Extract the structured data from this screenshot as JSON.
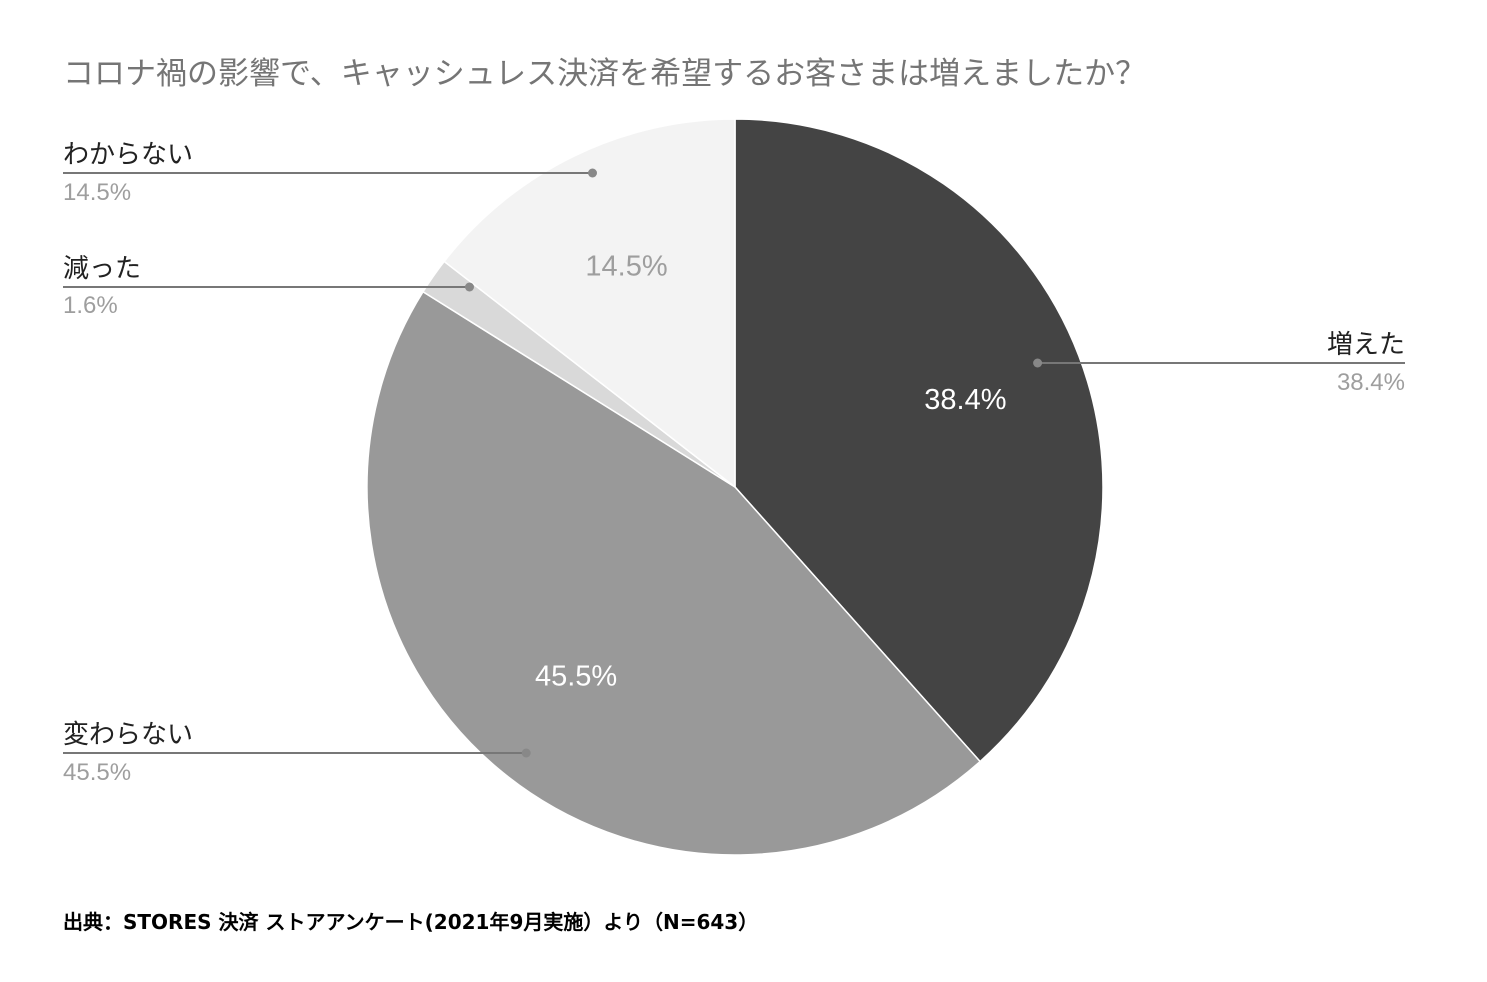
{
  "chart_data": {
    "type": "pie",
    "title": "コロナ禍の影響で、キャッシュレス決済を希望するお客さまは増えましたか？",
    "start_angle_deg": 0,
    "direction": "clockwise",
    "slices": [
      {
        "label": "増えた",
        "value": 38.4,
        "display": "38.4%",
        "color": "#444444",
        "label_color": "#ffffff",
        "legend_side": "right"
      },
      {
        "label": "変わらない",
        "value": 45.5,
        "display": "45.5%",
        "color": "#999999",
        "label_color": "#ffffff",
        "legend_side": "left"
      },
      {
        "label": "減った",
        "value": 1.6,
        "display": "1.6%",
        "color": "#d9d9d9",
        "label_color": "#9e9e9e",
        "legend_side": "left"
      },
      {
        "label": "わからない",
        "value": 14.5,
        "display": "14.5%",
        "color": "#f3f3f3",
        "label_color": "#9e9e9e",
        "legend_side": "left"
      }
    ]
  },
  "source": "出典：STORES 決済 ストアアンケート(2021年9月実施）より（N=643）"
}
